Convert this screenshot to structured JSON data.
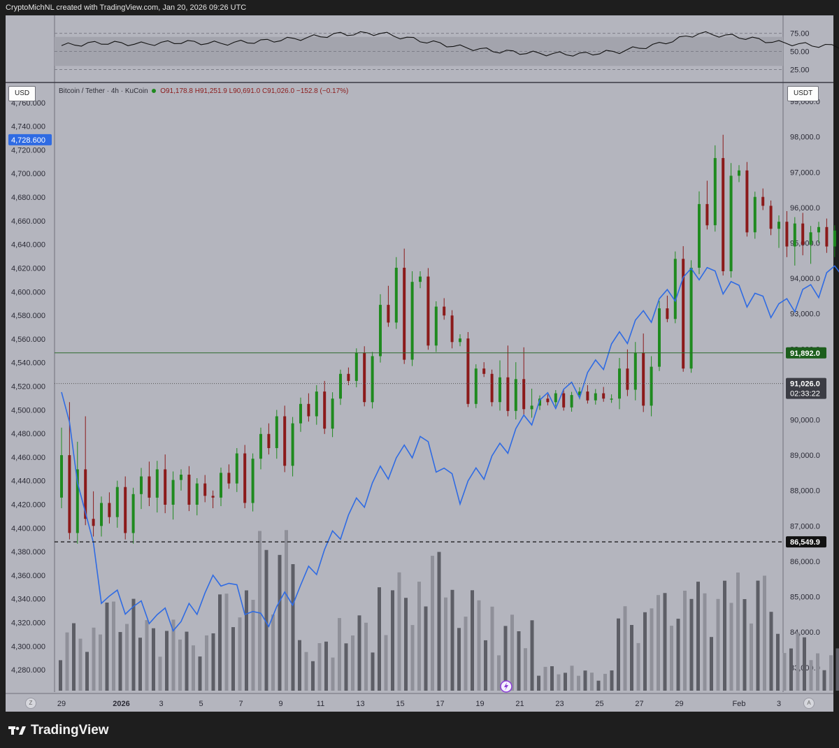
{
  "header": {
    "caption": "CryptoMichNL created with TradingView.com, Jan 20, 2026 09:26 UTC"
  },
  "footer": {
    "brand": "TradingView"
  },
  "currency_left": "USD",
  "currency_right": "USDT",
  "legend": {
    "symbol": "Bitcoin / Tether · 4h · KuCoin",
    "open": "O91,178.8",
    "high": "H91,251.9",
    "low": "L90,691.0",
    "close": "C91,026.0",
    "change": "−152.8 (−0.17%)"
  },
  "bottom_buttons": {
    "left": "Z",
    "right": "A"
  },
  "colors": {
    "background": "#b4b5be",
    "up": "#1f8a1f",
    "down": "#8b1a1a",
    "overlay_line": "#2f6be3",
    "horizontal_green": "#2d6b2d",
    "label_green_bg": "#1c5e1c",
    "label_blue_bg": "#2f6be3",
    "label_black_bg": "#111111"
  },
  "chart_data": [
    {
      "type": "line",
      "panel": "oscillator",
      "levels": [
        75,
        50,
        25
      ],
      "tick_labels": [
        "75.00",
        "50.00",
        "25.00"
      ],
      "ylim": [
        10,
        90
      ],
      "shaded_band": [
        30,
        70
      ],
      "x": [
        "Dec 29",
        "Dec 30",
        "Dec 31",
        "Jan 1",
        "Jan 2",
        "Jan 3",
        "Jan 4",
        "Jan 5",
        "Jan 6",
        "Jan 7",
        "Jan 8",
        "Jan 9",
        "Jan 10",
        "Jan 11",
        "Jan 12",
        "Jan 13",
        "Jan 14",
        "Jan 15",
        "Jan 16",
        "Jan 17",
        "Jan 18",
        "Jan 19",
        "Jan 20"
      ],
      "values": [
        58,
        62,
        60,
        63,
        61,
        64,
        68,
        74,
        75,
        65,
        56,
        50,
        47,
        46,
        50,
        60,
        75,
        70,
        62,
        58,
        56,
        40,
        28
      ]
    },
    {
      "type": "candlestick",
      "panel": "price",
      "title": "Bitcoin / Tether · 4h · KuCoin",
      "y_right_label": "USDT",
      "y_right_ticks": [
        "99,000.0",
        "98,000.0",
        "97,000.0",
        "96,000.0",
        "95,000.0",
        "94,000.0",
        "93,000.0",
        "92,000.0",
        "91,000.0",
        "90,000.0",
        "89,000.0",
        "88,000.0",
        "87,000.0",
        "86,000.0",
        "85,000.0",
        "84,000.0",
        "83,000.0"
      ],
      "ylim_right": [
        82600,
        99200
      ],
      "x_ticks": [
        "29",
        "2026",
        "3",
        "5",
        "7",
        "9",
        "11",
        "13",
        "15",
        "17",
        "19",
        "21",
        "23",
        "25",
        "27",
        "29",
        "Feb",
        "3"
      ],
      "candles_daily_approx": [
        {
          "date": "Dec 29",
          "o": 87800,
          "h": 90200,
          "l": 86600,
          "c": 87000
        },
        {
          "date": "Dec 30",
          "o": 87000,
          "h": 88300,
          "l": 86600,
          "c": 87900
        },
        {
          "date": "Dec 31",
          "o": 87900,
          "h": 88900,
          "l": 87300,
          "c": 88300
        },
        {
          "date": "Jan 1",
          "o": 88300,
          "h": 88600,
          "l": 87400,
          "c": 87800
        },
        {
          "date": "Jan 2",
          "o": 87800,
          "h": 89200,
          "l": 87500,
          "c": 88900
        },
        {
          "date": "Jan 3",
          "o": 88900,
          "h": 90300,
          "l": 88500,
          "c": 89900
        },
        {
          "date": "Jan 4",
          "o": 89900,
          "h": 91000,
          "l": 89600,
          "c": 90600
        },
        {
          "date": "Jan 5",
          "o": 90600,
          "h": 92000,
          "l": 90400,
          "c": 91800
        },
        {
          "date": "Jan 6",
          "o": 91800,
          "h": 94700,
          "l": 91600,
          "c": 93900
        },
        {
          "date": "Jan 7",
          "o": 93900,
          "h": 94200,
          "l": 92000,
          "c": 92200
        },
        {
          "date": "Jan 8",
          "o": 92200,
          "h": 92400,
          "l": 90400,
          "c": 90500
        },
        {
          "date": "Jan 9",
          "o": 90500,
          "h": 91900,
          "l": 90100,
          "c": 90400
        },
        {
          "date": "Jan 10",
          "o": 90400,
          "h": 90800,
          "l": 90300,
          "c": 90700
        },
        {
          "date": "Jan 11",
          "o": 90700,
          "h": 90900,
          "l": 90500,
          "c": 90600
        },
        {
          "date": "Jan 12",
          "o": 90600,
          "h": 92300,
          "l": 90200,
          "c": 91500
        },
        {
          "date": "Jan 13",
          "o": 91500,
          "h": 94800,
          "l": 91400,
          "c": 94300
        },
        {
          "date": "Jan 14",
          "o": 94300,
          "h": 97900,
          "l": 94100,
          "c": 96900
        },
        {
          "date": "Jan 15",
          "o": 96900,
          "h": 97200,
          "l": 95200,
          "c": 95400
        },
        {
          "date": "Jan 16",
          "o": 95400,
          "h": 95800,
          "l": 94500,
          "c": 95300
        },
        {
          "date": "Jan 17",
          "o": 95300,
          "h": 95600,
          "l": 94700,
          "c": 95100
        },
        {
          "date": "Jan 18",
          "o": 95100,
          "h": 95400,
          "l": 94800,
          "c": 95000
        },
        {
          "date": "Jan 19",
          "o": 95000,
          "h": 95300,
          "l": 92000,
          "c": 92900
        },
        {
          "date": "Jan 20",
          "o": 92900,
          "h": 93000,
          "l": 90700,
          "c": 91026
        }
      ],
      "horizontal_lines": [
        {
          "value": 91892.0,
          "label": "91,892.0",
          "style": "solid"
        },
        {
          "value": 86549.9,
          "label": "86,549.9",
          "style": "dashed"
        },
        {
          "value": 91026.0,
          "label": "91,026.0",
          "style": "dotted"
        }
      ],
      "countdown": "02:33:22"
    },
    {
      "type": "line",
      "panel": "price-overlay-left-axis",
      "y_left_label": "USD",
      "y_left_ticks": [
        "4,760.000",
        "4,740.000",
        "4,720.000",
        "4,700.000",
        "4,680.000",
        "4,660.000",
        "4,640.000",
        "4,620.000",
        "4,600.000",
        "4,580.000",
        "4,560.000",
        "4,540.000",
        "4,520.000",
        "4,500.000",
        "4,480.000",
        "4,460.000",
        "4,440.000",
        "4,420.000",
        "4,400.000",
        "4,380.000",
        "4,360.000",
        "4,340.000",
        "4,320.000",
        "4,300.000",
        "4,280.000"
      ],
      "ylim_left": [
        4270,
        4767
      ],
      "last_value_label": "4,728.600",
      "x": [
        "Dec 29",
        "Dec 30",
        "Dec 31",
        "Jan 1",
        "Jan 2",
        "Jan 3",
        "Jan 4",
        "Jan 5",
        "Jan 6",
        "Jan 7",
        "Jan 8",
        "Jan 9",
        "Jan 10",
        "Jan 11",
        "Jan 12",
        "Jan 13",
        "Jan 14",
        "Jan 15",
        "Jan 16",
        "Jan 17",
        "Jan 18",
        "Jan 19",
        "Jan 20"
      ],
      "values": [
        4515,
        4345,
        4330,
        4320,
        4360,
        4320,
        4350,
        4400,
        4445,
        4475,
        4430,
        4465,
        4505,
        4520,
        4560,
        4590,
        4620,
        4600,
        4585,
        4605,
        4635,
        4660,
        4728.6
      ]
    },
    {
      "type": "bar",
      "panel": "volume",
      "x": [
        "Dec 29",
        "Dec 30",
        "Dec 31",
        "Jan 1",
        "Jan 2",
        "Jan 3",
        "Jan 4",
        "Jan 5",
        "Jan 6",
        "Jan 7",
        "Jan 8",
        "Jan 9",
        "Jan 10",
        "Jan 11",
        "Jan 12",
        "Jan 13",
        "Jan 14",
        "Jan 15",
        "Jan 16",
        "Jan 17",
        "Jan 18",
        "Jan 19",
        "Jan 20"
      ],
      "values": [
        40,
        55,
        42,
        35,
        60,
        95,
        30,
        45,
        70,
        85,
        60,
        45,
        15,
        12,
        50,
        60,
        65,
        70,
        35,
        25,
        18,
        42,
        38
      ]
    }
  ]
}
